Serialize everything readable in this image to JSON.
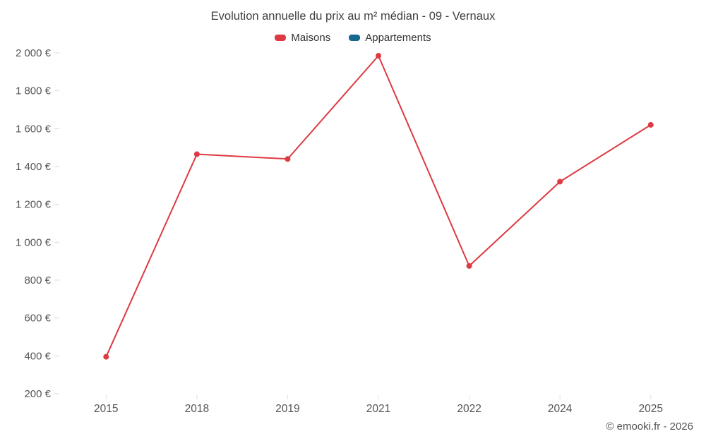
{
  "chart_data": {
    "type": "line",
    "title": "Evolution annuelle du prix au m² médian - 09 - Vernaux",
    "categories": [
      "2015",
      "2018",
      "2019",
      "2021",
      "2022",
      "2024",
      "2025"
    ],
    "series": [
      {
        "name": "Maisons",
        "color": "#dd3a41",
        "values": [
          395,
          1465,
          1440,
          1985,
          875,
          1320,
          1620
        ]
      },
      {
        "name": "Appartements",
        "color": "#15688e",
        "values": []
      }
    ],
    "xlabel": "",
    "ylabel": "",
    "ylim": [
      200,
      2000
    ],
    "ytick_step": 200,
    "ytick_labels": [
      "200 €",
      "400 €",
      "600 €",
      "800 €",
      "1 000 €",
      "1 200 €",
      "1 400 €",
      "1 600 €",
      "1 800 €",
      "2 000 €"
    ],
    "grid": false,
    "legend_position": "top",
    "marker_radius": 4,
    "text_color": "#545454"
  },
  "footer": {
    "credit": "© emooki.fr - 2026"
  }
}
